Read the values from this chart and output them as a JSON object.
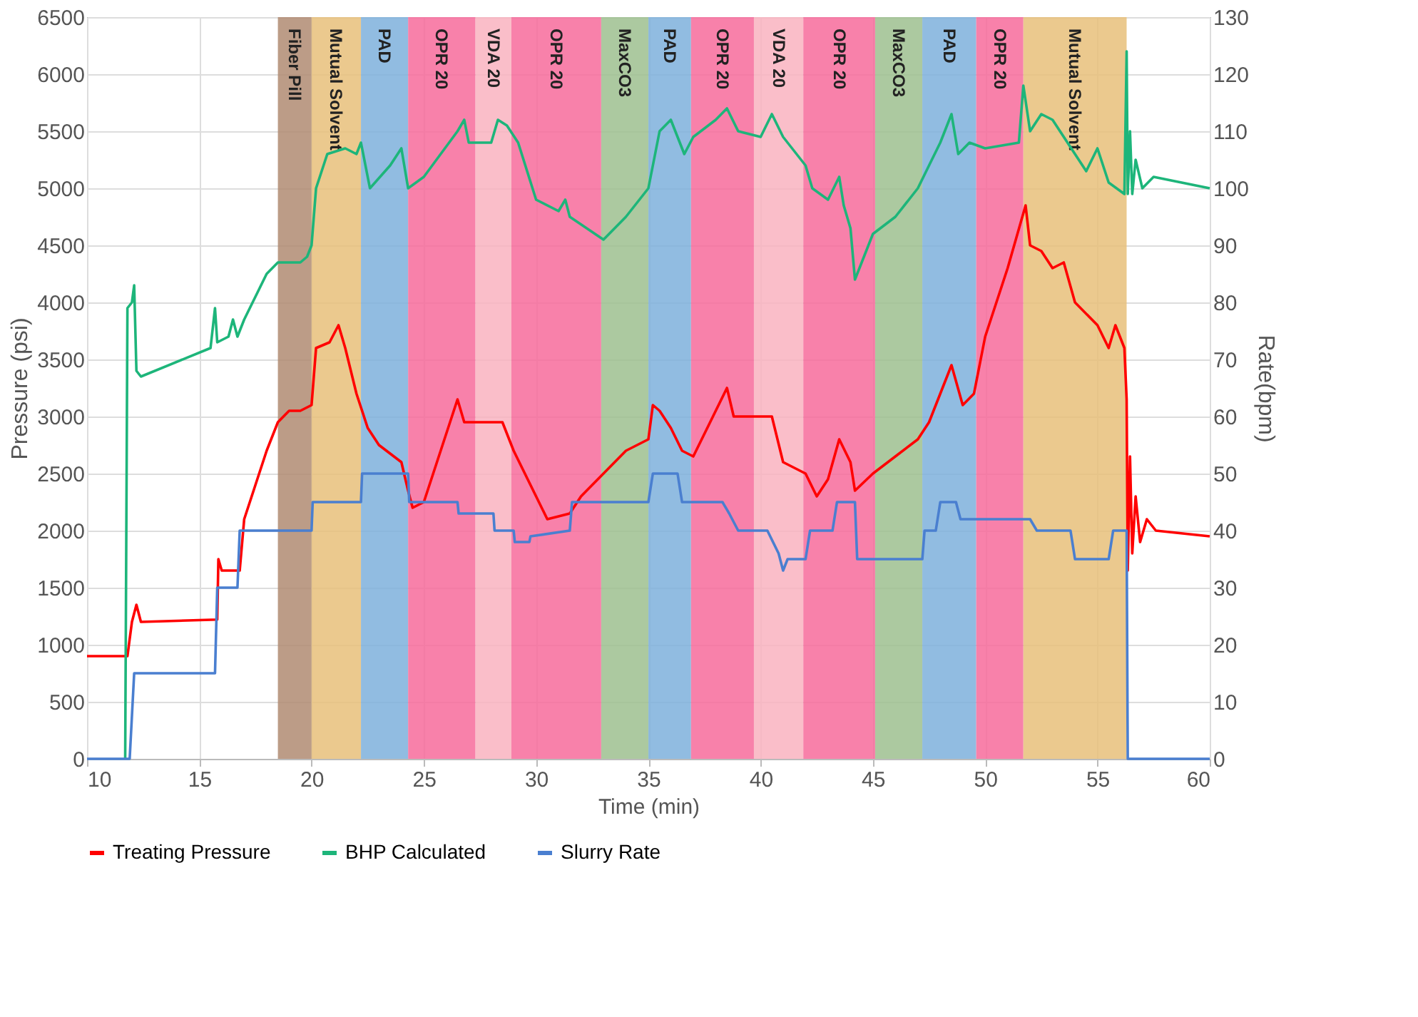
{
  "chart_data": {
    "type": "line",
    "xlabel": "Time (min)",
    "ylabel": "Pressure (psi)",
    "y2label": "Rate(bpm)",
    "xlim": [
      10,
      60
    ],
    "xticks": [
      10,
      15,
      20,
      25,
      30,
      35,
      40,
      45,
      50,
      55,
      60
    ],
    "ylim": [
      0,
      6500
    ],
    "yticks": [
      0,
      500,
      1000,
      1500,
      2000,
      2500,
      3000,
      3500,
      4000,
      4500,
      5000,
      5500,
      6000,
      6500
    ],
    "y2lim": [
      0,
      130
    ],
    "y2ticks": [
      0,
      10,
      20,
      30,
      40,
      50,
      60,
      70,
      80,
      90,
      100,
      110,
      120,
      130
    ],
    "grid": true,
    "legend": "bottom",
    "line_style": "solid",
    "bands": [
      {
        "axis": "x",
        "from": 18.5,
        "to": 20.0,
        "label": "Fiber Pill",
        "color": "#b08b72"
      },
      {
        "axis": "x",
        "from": 20.0,
        "to": 22.2,
        "label": "Mutual Solvent",
        "color": "#e8c07a"
      },
      {
        "axis": "x",
        "from": 22.2,
        "to": 24.3,
        "label": "PAD",
        "color": "#7eb0dc"
      },
      {
        "axis": "x",
        "from": 24.3,
        "to": 27.3,
        "label": "OPR 20",
        "color": "#f76b9b"
      },
      {
        "axis": "x",
        "from": 27.3,
        "to": 28.9,
        "label": "VDA  20",
        "color": "#f9b3c0"
      },
      {
        "axis": "x",
        "from": 28.9,
        "to": 32.9,
        "label": "OPR 20",
        "color": "#f76b9b"
      },
      {
        "axis": "x",
        "from": 32.9,
        "to": 35.0,
        "label": "MaxCO3",
        "color": "#9dbf8f"
      },
      {
        "axis": "x",
        "from": 35.0,
        "to": 36.9,
        "label": "PAD",
        "color": "#7eb0dc"
      },
      {
        "axis": "x",
        "from": 36.9,
        "to": 39.7,
        "label": "OPR 20",
        "color": "#f76b9b"
      },
      {
        "axis": "x",
        "from": 39.7,
        "to": 41.9,
        "label": "VDA  20",
        "color": "#f9b3c0"
      },
      {
        "axis": "x",
        "from": 41.9,
        "to": 45.1,
        "label": "OPR 20",
        "color": "#f76b9b"
      },
      {
        "axis": "x",
        "from": 45.1,
        "to": 47.2,
        "label": "MaxCO3",
        "color": "#9dbf8f"
      },
      {
        "axis": "x",
        "from": 47.2,
        "to": 49.6,
        "label": "PAD",
        "color": "#7eb0dc"
      },
      {
        "axis": "x",
        "from": 49.6,
        "to": 51.7,
        "label": "OPR 20",
        "color": "#f76b9b"
      },
      {
        "axis": "x",
        "from": 51.7,
        "to": 56.3,
        "label": "Mutual Solvent",
        "color": "#e8c07a"
      }
    ],
    "series": [
      {
        "name": "Treating Pressure",
        "color": "#ff0000",
        "x": [
          10,
          11.8,
          12,
          12.2,
          12.4,
          15.8,
          15.85,
          16,
          16.8,
          17,
          17.5,
          18,
          18.5,
          19,
          19.5,
          20,
          20.2,
          20.8,
          21.2,
          21.5,
          22,
          22.5,
          23,
          24,
          24.3,
          24.5,
          25,
          26.5,
          26.8,
          28,
          28.5,
          29,
          30,
          30.5,
          31.5,
          32,
          33,
          34,
          35,
          35.2,
          35.5,
          36,
          36.5,
          37,
          38.5,
          38.8,
          40,
          40.5,
          41,
          42,
          42.5,
          43,
          43.5,
          44,
          44.2,
          45,
          46,
          47,
          47.5,
          48,
          48.5,
          49,
          49.5,
          50,
          51,
          51.8,
          52,
          52.5,
          53,
          53.5,
          54,
          55,
          55.5,
          55.8,
          56.2,
          56.3,
          56.35,
          56.45,
          56.55,
          56.7,
          56.9,
          57.2,
          57.6,
          60
        ],
        "values": [
          900,
          900,
          1200,
          1350,
          1200,
          1220,
          1750,
          1650,
          1650,
          2100,
          2400,
          2700,
          2950,
          3050,
          3050,
          3100,
          3600,
          3650,
          3800,
          3600,
          3200,
          2900,
          2750,
          2600,
          2350,
          2200,
          2250,
          3150,
          2950,
          2950,
          2950,
          2700,
          2300,
          2100,
          2150,
          2300,
          2500,
          2700,
          2800,
          3100,
          3050,
          2900,
          2700,
          2650,
          3250,
          3000,
          3000,
          3000,
          2600,
          2500,
          2300,
          2450,
          2800,
          2600,
          2350,
          2500,
          2650,
          2800,
          2950,
          3200,
          3450,
          3100,
          3200,
          3700,
          4300,
          4850,
          4500,
          4450,
          4300,
          4350,
          4000,
          3800,
          3600,
          3800,
          3600,
          3150,
          1650,
          2650,
          1800,
          2300,
          1900,
          2100,
          2000,
          1950
        ]
      },
      {
        "name": "BHP Calculated",
        "color": "#1db57a",
        "x": [
          11.7,
          11.8,
          12,
          12.1,
          12.2,
          12.4,
          15.5,
          15.7,
          15.8,
          16.3,
          16.5,
          16.7,
          17,
          18,
          18.5,
          19.5,
          19.8,
          20,
          20.2,
          20.7,
          21.5,
          22,
          22.2,
          22.6,
          23.5,
          24,
          24.3,
          25,
          26.5,
          26.8,
          27,
          28,
          28.3,
          28.7,
          29.2,
          30,
          31,
          31.3,
          31.5,
          33,
          34,
          35,
          35.5,
          36,
          36.3,
          36.6,
          37,
          38,
          38.5,
          39,
          40,
          40.5,
          41,
          42,
          42.3,
          43,
          43.5,
          43.7,
          44,
          44.2,
          45,
          46,
          47,
          47.5,
          48,
          48.5,
          48.8,
          49.3,
          50,
          51.5,
          51.7,
          52,
          52.5,
          53,
          54,
          54.5,
          55,
          55.5,
          56.2,
          56.3,
          56.35,
          56.45,
          56.55,
          56.7,
          57,
          57.5,
          60
        ],
        "values": [
          0,
          3950,
          4000,
          4150,
          3400,
          3350,
          3600,
          3950,
          3650,
          3700,
          3850,
          3700,
          3850,
          4250,
          4350,
          4350,
          4400,
          4500,
          5000,
          5300,
          5350,
          5300,
          5400,
          5000,
          5200,
          5350,
          5000,
          5100,
          5500,
          5600,
          5400,
          5400,
          5600,
          5550,
          5400,
          4900,
          4800,
          4900,
          4750,
          4550,
          4750,
          5000,
          5500,
          5600,
          5450,
          5300,
          5450,
          5600,
          5700,
          5500,
          5450,
          5650,
          5450,
          5200,
          5000,
          4900,
          5100,
          4850,
          4650,
          4200,
          4600,
          4750,
          5000,
          5200,
          5400,
          5650,
          5300,
          5400,
          5350,
          5400,
          5900,
          5500,
          5650,
          5600,
          5300,
          5150,
          5350,
          5050,
          4950,
          6200,
          4950,
          5500,
          4950,
          5250,
          5000,
          5100,
          5000
        ]
      },
      {
        "name": "Slurry Rate",
        "color": "#4a7fd0",
        "axis": "y2",
        "x": [
          10,
          11.9,
          12.1,
          15.7,
          15.8,
          16.7,
          16.8,
          20,
          20.05,
          22.2,
          22.25,
          24.3,
          24.35,
          26.5,
          26.55,
          28.1,
          28.15,
          29,
          29.05,
          29.7,
          29.75,
          31.5,
          31.6,
          35,
          35.2,
          36.3,
          36.5,
          38.3,
          38.6,
          39,
          40.3,
          40.8,
          41,
          41.2,
          42,
          42.2,
          43.2,
          43.4,
          44.2,
          44.3,
          47.2,
          47.3,
          47.8,
          48,
          48.7,
          48.9,
          52,
          52.3,
          53.8,
          54,
          55.5,
          55.7,
          56.3,
          56.35,
          60
        ],
        "values": [
          0,
          0,
          15,
          15,
          30,
          30,
          40,
          40,
          45,
          45,
          50,
          50,
          45,
          45,
          43,
          43,
          40,
          40,
          38,
          38,
          39,
          40,
          45,
          45,
          50,
          50,
          45,
          45,
          43,
          40,
          40,
          36,
          33,
          35,
          35,
          40,
          40,
          45,
          45,
          35,
          35,
          40,
          40,
          45,
          45,
          42,
          42,
          40,
          40,
          35,
          35,
          40,
          40,
          0,
          0
        ]
      }
    ]
  }
}
